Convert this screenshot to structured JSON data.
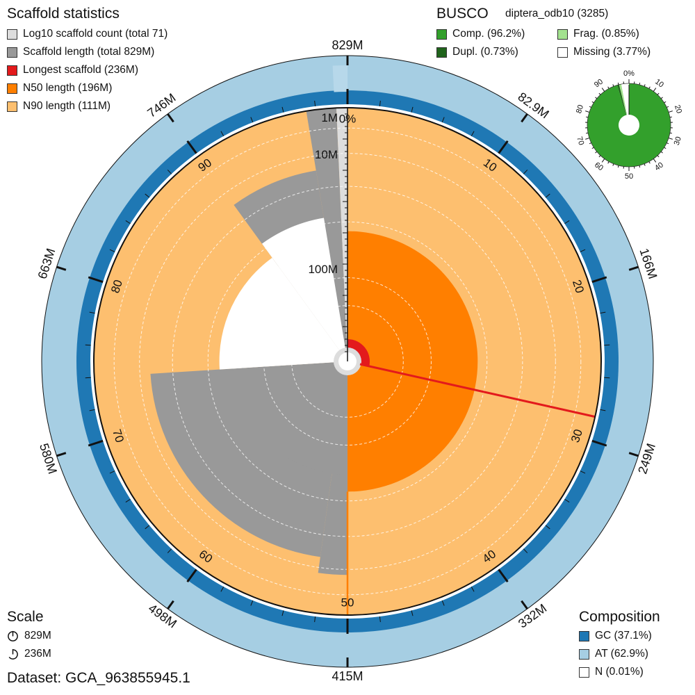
{
  "scaffold_panel": {
    "title": "Scaffold statistics",
    "items": [
      {
        "label": "Log10 scaffold count (total 71)",
        "color": "#dddddd"
      },
      {
        "label": "Scaffold length (total 829M)",
        "color": "#999999"
      },
      {
        "label": "Longest scaffold (236M)",
        "color": "#e31a1c"
      },
      {
        "label": "N50 length (196M)",
        "color": "#ff7f00"
      },
      {
        "label": "N90 length (111M)",
        "color": "#fdbf6f"
      }
    ]
  },
  "busco_panel": {
    "title": "BUSCO",
    "lineage": "diptera_odb10 (3285)",
    "items": [
      {
        "label": "Comp. (96.2%)",
        "color": "#33a02c"
      },
      {
        "label": "Dupl. (0.73%)",
        "color": "#20641c"
      },
      {
        "label": "Frag. (0.85%)",
        "color": "#a3e28f"
      },
      {
        "label": "Missing (3.77%)",
        "color": "#ffffff"
      }
    ]
  },
  "scale_panel": {
    "title": "Scale",
    "items": [
      {
        "label": "829M",
        "icon": "full-circle-scale-icon"
      },
      {
        "label": "236M",
        "icon": "partial-circle-scale-icon"
      }
    ]
  },
  "composition_panel": {
    "title": "Composition",
    "items": [
      {
        "label": "GC (37.1%)",
        "color": "#1f78b4"
      },
      {
        "label": "AT (62.9%)",
        "color": "#a6cee3"
      },
      {
        "label": "N (0.01%)",
        "color": "#ffffff"
      }
    ]
  },
  "dataset": "Dataset: GCA_963855945.1",
  "chart_data": {
    "type": "snail",
    "total_length_label": "829M",
    "outer_ticks": [
      {
        "label": "829M",
        "percent": 0
      },
      {
        "label": "82.9M",
        "percent": 10
      },
      {
        "label": "166M",
        "percent": 20
      },
      {
        "label": "249M",
        "percent": 30
      },
      {
        "label": "332M",
        "percent": 40
      },
      {
        "label": "415M",
        "percent": 50
      },
      {
        "label": "498M",
        "percent": 60
      },
      {
        "label": "580M",
        "percent": 70
      },
      {
        "label": "663M",
        "percent": 80
      },
      {
        "label": "746M",
        "percent": 90
      }
    ],
    "inner_ticks": [
      {
        "label": "0%",
        "percent": 0
      },
      {
        "label": "10",
        "percent": 10
      },
      {
        "label": "20",
        "percent": 20
      },
      {
        "label": "30",
        "percent": 30
      },
      {
        "label": "40",
        "percent": 40
      },
      {
        "label": "50",
        "percent": 50
      },
      {
        "label": "60",
        "percent": 60
      },
      {
        "label": "70",
        "percent": 70
      },
      {
        "label": "80",
        "percent": 80
      },
      {
        "label": "90",
        "percent": 90
      }
    ],
    "radial_scale_labels": [
      "1M",
      "10M",
      "100M"
    ],
    "longest_scaffold": 236,
    "n50_length": 196,
    "n90_length": 111,
    "n50_percent": 50,
    "n90_percent": 90,
    "scaffold_length_steps": [
      {
        "to_percent": 28.5,
        "length": 236
      },
      {
        "to_percent": 52.2,
        "length": 196
      },
      {
        "to_percent": 74.0,
        "length": 180
      },
      {
        "to_percent": 90.0,
        "length": 111
      },
      {
        "to_percent": 97.4,
        "length": 61
      },
      {
        "to_percent": 99.3,
        "length": 8
      },
      {
        "to_percent": 100,
        "length": 0.5
      }
    ],
    "busco": {
      "complete": 96.2,
      "duplicated": 0.73,
      "fragmented": 0.85,
      "missing": 3.77
    },
    "composition": {
      "gc": 37.1,
      "at": 62.9,
      "n": 0.01
    }
  }
}
